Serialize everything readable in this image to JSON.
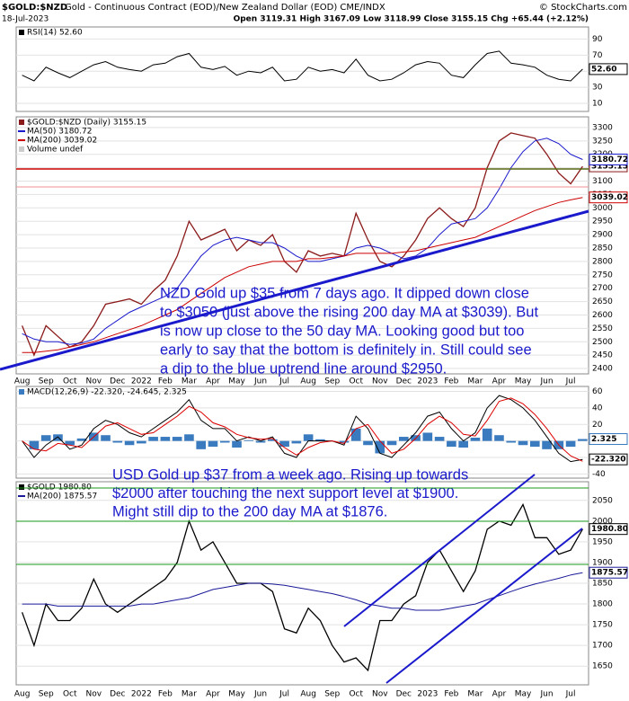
{
  "header": {
    "symbol": "$GOLD:$NZD",
    "description": "Gold - Continuous Contract (EOD)/New Zealand Dollar (EOD) CME/INDX",
    "copyright": "© StockCharts.com",
    "date": "18-Jul-2023",
    "ohlc": "Open 3119.31 High 3167.09 Low 3118.99 Close 3155.15 Chg +65.44 (+2.12%)"
  },
  "chart_data": [
    {
      "type": "line",
      "title": "RSI(14) 52.60",
      "ylim": [
        0,
        105
      ],
      "yticks": [
        10,
        30,
        50,
        70,
        90
      ],
      "grid": true,
      "series": [
        {
          "color": "#000000",
          "end_label": "52.60",
          "values": [
            45,
            38,
            55,
            48,
            42,
            50,
            58,
            62,
            55,
            52,
            50,
            58,
            60,
            68,
            72,
            55,
            52,
            56,
            45,
            50,
            48,
            55,
            38,
            40,
            55,
            50,
            52,
            48,
            65,
            45,
            38,
            40,
            48,
            58,
            62,
            60,
            45,
            42,
            58,
            72,
            75,
            60,
            58,
            55,
            45,
            40,
            38,
            52.6
          ]
        }
      ]
    },
    {
      "type": "line",
      "title": "$GOLD:$NZD (Daily) 3155.15",
      "volume_label": "Volume undef",
      "ylim": [
        2380,
        3340
      ],
      "yticks": [
        2400,
        2450,
        2500,
        2550,
        2600,
        2650,
        2700,
        2750,
        2800,
        2850,
        2900,
        2950,
        3000,
        3050,
        3100,
        3150,
        3200,
        3250,
        3300
      ],
      "grid": true,
      "categories": [
        "Aug",
        null,
        "Sep",
        null,
        "Oct",
        null,
        "Nov",
        null,
        "Dec",
        null,
        "2022",
        null,
        "Feb",
        null,
        "Mar",
        null,
        "Apr",
        null,
        "May",
        null,
        "Jun",
        null,
        "Jul",
        null,
        "Aug",
        null,
        "Sep",
        null,
        "Oct",
        null,
        "Nov",
        null,
        "Dec",
        null,
        "2023",
        null,
        "Feb",
        null,
        "Mar",
        null,
        "Apr",
        null,
        "May",
        null,
        "Jun",
        null,
        "Jul",
        null
      ],
      "annotation": [
        "NZD Gold up $35 from 7 days ago. It dipped down close",
        "to $3050 (just above the rising 200 day MA at $3039). But",
        "is now up close to the 50 day MA. Looking good but too",
        "early to say that the bottom is definitely in. Still could see",
        "a dip to the blue uptrend line around $2950."
      ],
      "series": [
        {
          "color": "#8b1a1a",
          "end_label": "3155.15",
          "values": [
            2560,
            2450,
            2560,
            2520,
            2480,
            2500,
            2560,
            2640,
            2650,
            2660,
            2640,
            2690,
            2730,
            2820,
            2950,
            2880,
            2900,
            2920,
            2840,
            2880,
            2860,
            2900,
            2800,
            2760,
            2840,
            2820,
            2830,
            2820,
            2980,
            2880,
            2800,
            2780,
            2820,
            2880,
            2960,
            3000,
            2960,
            2930,
            3000,
            3150,
            3250,
            3280,
            3270,
            3260,
            3200,
            3130,
            3090,
            3155.15
          ]
        },
        {
          "name": "MA(50) 3180.72",
          "color": "#1a1acc",
          "end_label": "3180.72",
          "values": [
            2530,
            2510,
            2500,
            2500,
            2490,
            2495,
            2510,
            2550,
            2580,
            2610,
            2630,
            2650,
            2670,
            2700,
            2760,
            2820,
            2860,
            2880,
            2890,
            2880,
            2870,
            2870,
            2850,
            2820,
            2800,
            2800,
            2810,
            2820,
            2850,
            2860,
            2850,
            2830,
            2810,
            2820,
            2850,
            2900,
            2940,
            2950,
            2960,
            3000,
            3070,
            3150,
            3210,
            3250,
            3260,
            3240,
            3200,
            3180.72
          ]
        },
        {
          "name": "MA(200) 3039.02",
          "color": "#cc0000",
          "end_label": "3039.02",
          "values": [
            2460,
            2460,
            2465,
            2470,
            2480,
            2490,
            2500,
            2515,
            2530,
            2545,
            2560,
            2580,
            2600,
            2620,
            2650,
            2680,
            2710,
            2740,
            2760,
            2780,
            2790,
            2800,
            2800,
            2800,
            2810,
            2810,
            2815,
            2820,
            2830,
            2830,
            2830,
            2830,
            2835,
            2840,
            2850,
            2860,
            2870,
            2880,
            2890,
            2910,
            2930,
            2950,
            2970,
            2990,
            3005,
            3020,
            3030,
            3039.02
          ]
        }
      ]
    },
    {
      "type": "line",
      "title": "MACD(12,26,9) -22.320, -24.645, 2.325",
      "ylim": [
        -45,
        66
      ],
      "yticks": [
        -40,
        -20,
        0,
        20,
        40,
        60
      ],
      "grid": true,
      "series": [
        {
          "type": "bar",
          "color": "#3a7abf",
          "end_label": "2.325",
          "values": [
            0,
            -10,
            7,
            8,
            -5,
            3,
            10,
            7,
            -2,
            -5,
            -3,
            5,
            5,
            5,
            8,
            -10,
            -7,
            -2,
            -8,
            1,
            -2,
            2,
            -7,
            -3,
            8,
            2,
            0,
            -2,
            15,
            -5,
            -15,
            -5,
            5,
            7,
            10,
            5,
            -7,
            -8,
            4,
            15,
            7,
            -2,
            -5,
            -7,
            -10,
            -10,
            -7,
            2.325
          ]
        },
        {
          "color": "#000000",
          "end_label": "-22.320",
          "values": [
            0,
            -20,
            -5,
            5,
            -10,
            -5,
            15,
            25,
            20,
            10,
            5,
            15,
            25,
            35,
            50,
            25,
            15,
            15,
            0,
            5,
            0,
            5,
            -15,
            -20,
            0,
            0,
            0,
            -5,
            30,
            15,
            -15,
            -20,
            -5,
            10,
            30,
            35,
            15,
            0,
            10,
            40,
            55,
            50,
            40,
            25,
            5,
            -15,
            -25,
            -22.32
          ]
        },
        {
          "color": "#dd0000",
          "values": [
            0,
            -10,
            -12,
            -3,
            -5,
            -8,
            5,
            18,
            22,
            15,
            8,
            10,
            20,
            30,
            42,
            35,
            22,
            17,
            8,
            4,
            2,
            3,
            -8,
            -17,
            -8,
            -2,
            0,
            -3,
            15,
            20,
            0,
            -15,
            -10,
            3,
            20,
            30,
            22,
            8,
            6,
            25,
            48,
            52,
            45,
            32,
            15,
            -5,
            -18,
            -24.645
          ]
        }
      ]
    },
    {
      "type": "line",
      "title": "$GOLD 1980.80",
      "ylim": [
        1605,
        2095
      ],
      "yticks": [
        1650,
        1700,
        1750,
        1800,
        1850,
        1900,
        1950,
        2000,
        2050
      ],
      "grid": true,
      "categories": [
        "Aug",
        null,
        "Sep",
        null,
        "Oct",
        null,
        "Nov",
        null,
        "Dec",
        null,
        "2022",
        null,
        "Feb",
        null,
        "Mar",
        null,
        "Apr",
        null,
        "May",
        null,
        "Jun",
        null,
        "Jul",
        null,
        "Aug",
        null,
        "Sep",
        null,
        "Oct",
        null,
        "Nov",
        null,
        "Dec",
        null,
        "2023",
        null,
        "Feb",
        null,
        "Mar",
        null,
        "Apr",
        null,
        "May",
        null,
        "Jun",
        null,
        "Jul",
        null
      ],
      "annotation": [
        "USD Gold up $37 from a week ago. Rising up towards",
        "$2000 after touching the next support level at $1900.",
        "Might still dip to the 200 day MA at $1876."
      ],
      "series": [
        {
          "color": "#000000",
          "end_label": "1980.80",
          "values": [
            1780,
            1700,
            1800,
            1760,
            1760,
            1790,
            1860,
            1800,
            1780,
            1800,
            1820,
            1840,
            1860,
            1900,
            2000,
            1930,
            1950,
            1900,
            1850,
            1850,
            1850,
            1830,
            1740,
            1730,
            1790,
            1760,
            1700,
            1660,
            1670,
            1640,
            1760,
            1760,
            1800,
            1820,
            1900,
            1930,
            1880,
            1830,
            1880,
            1980,
            2000,
            1990,
            2040,
            1960,
            1960,
            1920,
            1930,
            1980.8
          ]
        },
        {
          "name": "MA(200) 1875.57",
          "color": "#1a1a99",
          "end_label": "1875.57",
          "values": [
            1800,
            1800,
            1800,
            1795,
            1795,
            1795,
            1795,
            1795,
            1795,
            1795,
            1800,
            1800,
            1805,
            1810,
            1815,
            1825,
            1835,
            1840,
            1845,
            1850,
            1850,
            1848,
            1845,
            1840,
            1835,
            1830,
            1825,
            1818,
            1810,
            1800,
            1795,
            1790,
            1790,
            1785,
            1785,
            1785,
            1790,
            1795,
            1800,
            1810,
            1820,
            1830,
            1840,
            1848,
            1855,
            1862,
            1870,
            1875.57
          ]
        }
      ]
    }
  ]
}
